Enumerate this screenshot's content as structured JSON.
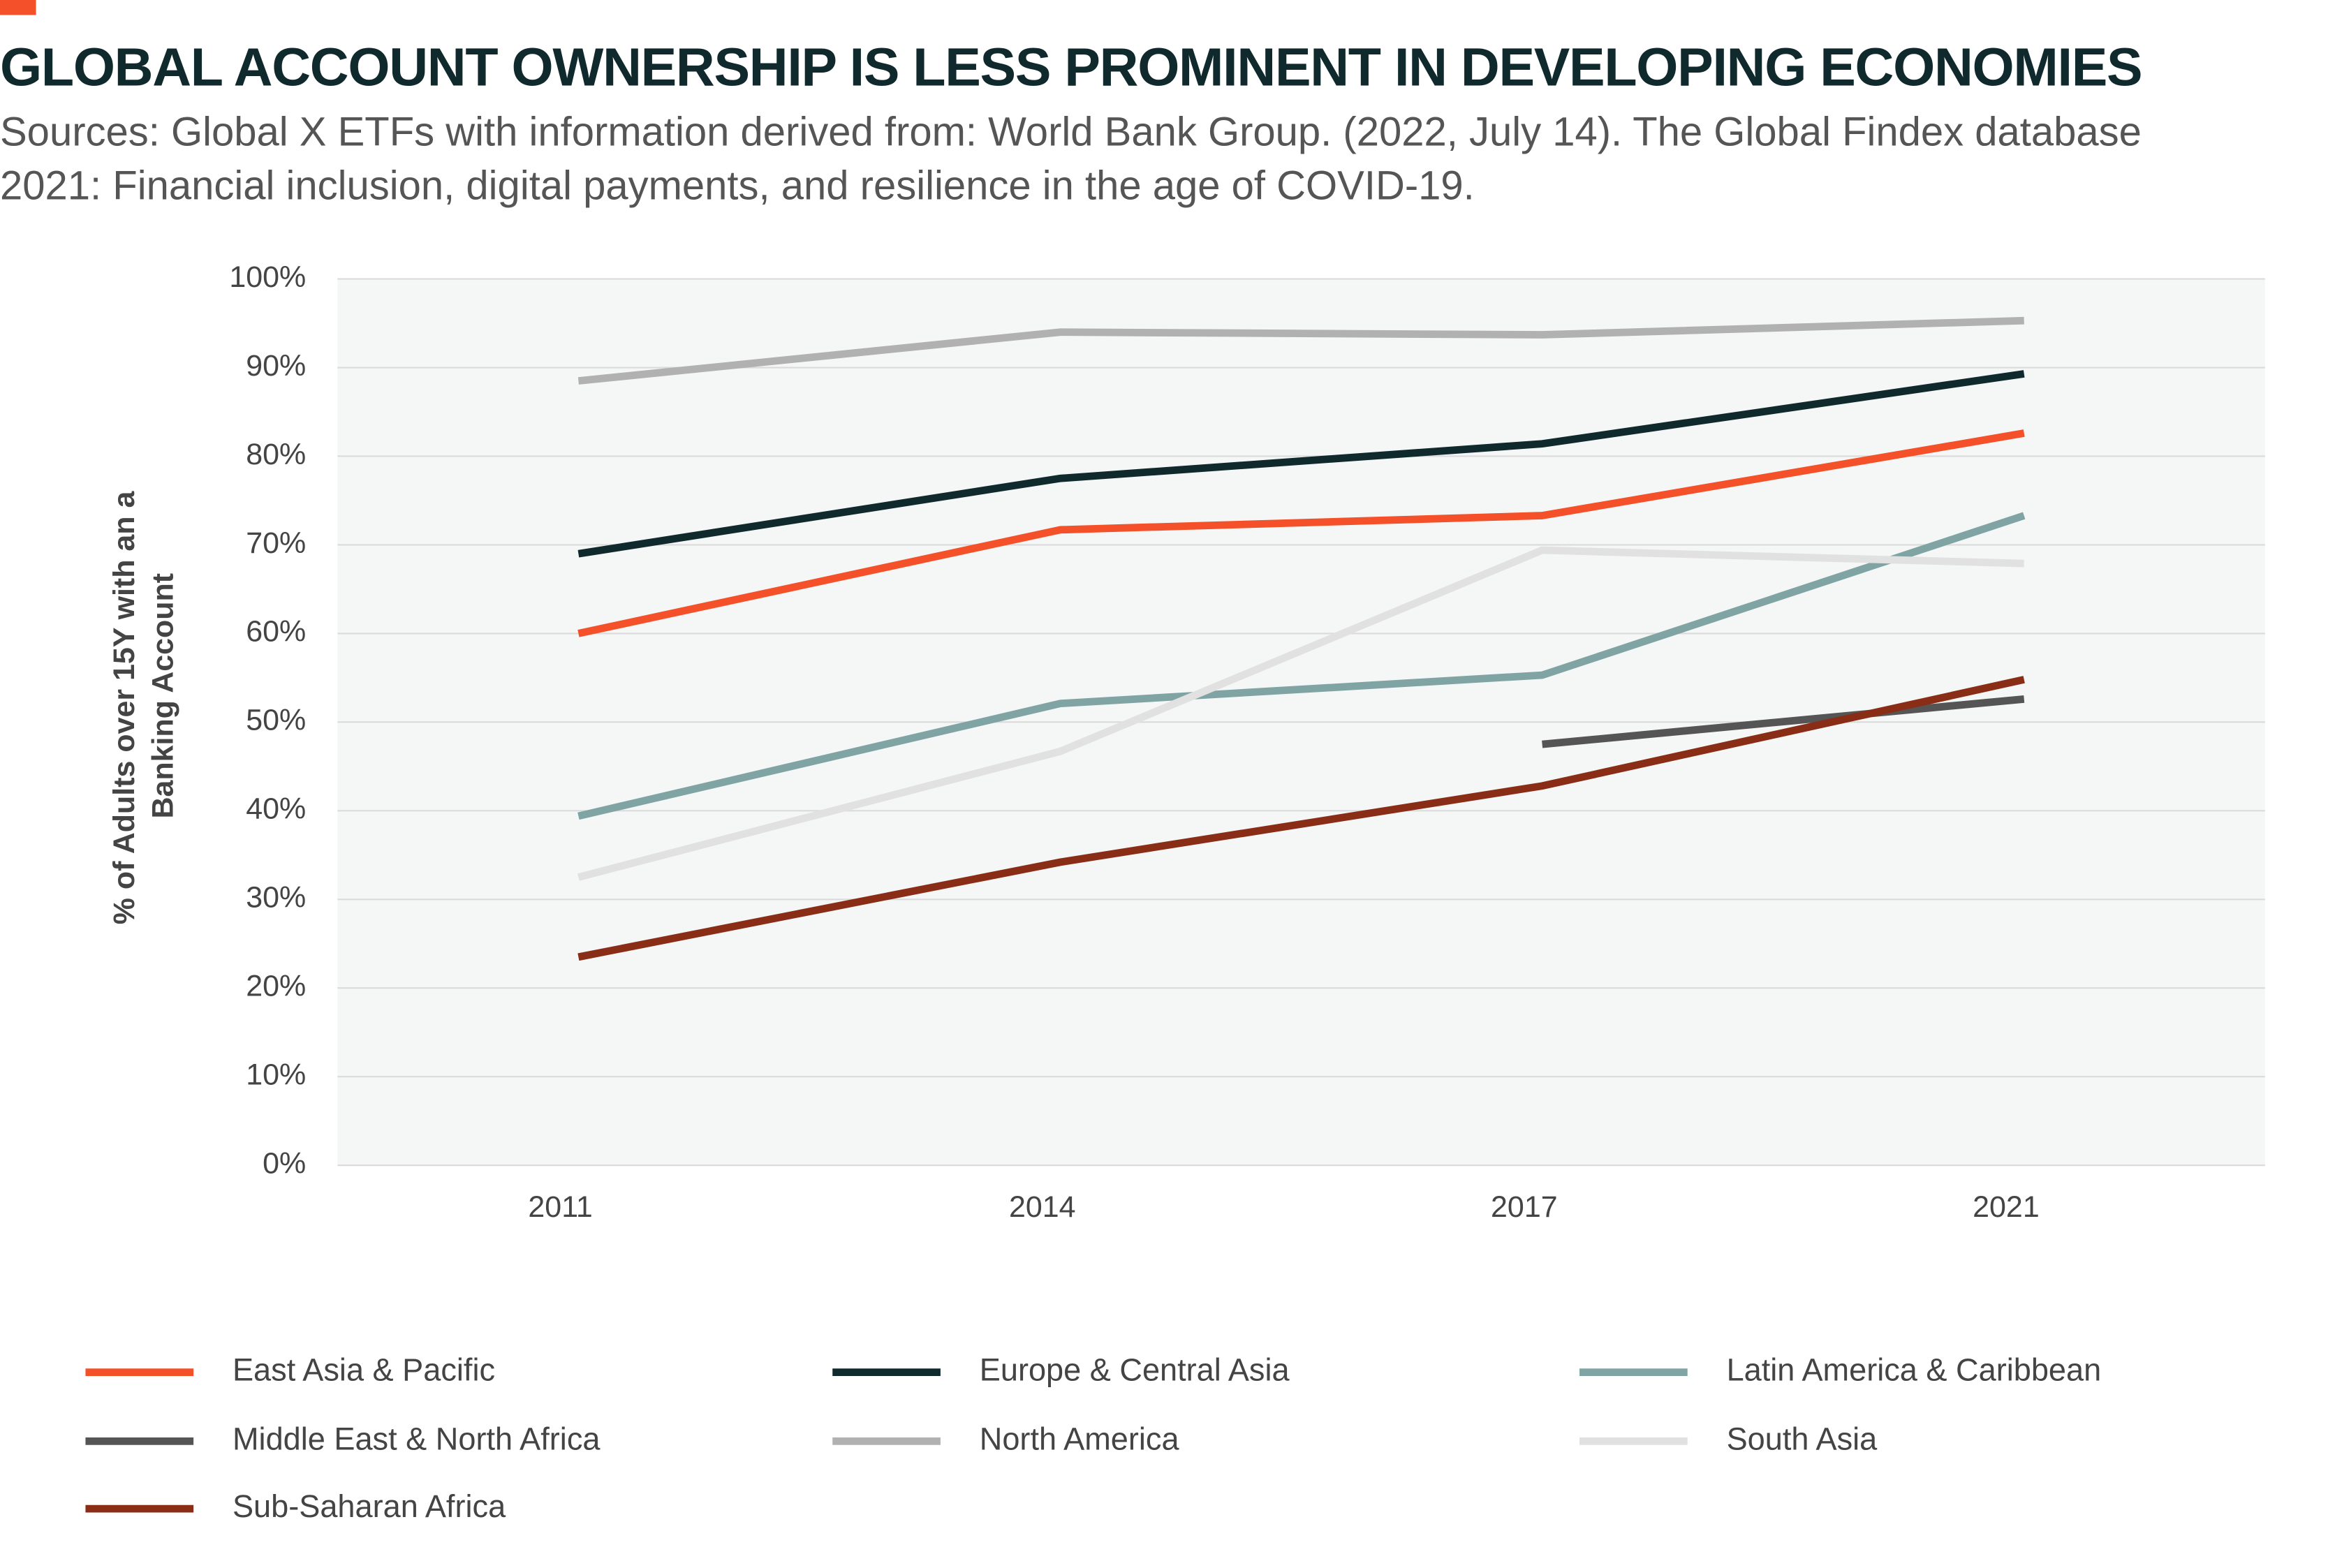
{
  "chart_data": {
    "type": "line",
    "title": "GLOBAL ACCOUNT OWNERSHIP IS LESS PROMINENT IN DEVELOPING ECONOMIES",
    "subtitle": "Sources: Global X ETFs with information derived from: World Bank Group. (2022, July 14). The Global Findex database 2021: Financial inclusion, digital payments, and resilience in the age of COVID-19.",
    "y_label": [
      "% of Adults over 15Y with an a",
      "Banking Account"
    ],
    "categories": [
      "2011",
      "2014",
      "2017",
      "2021"
    ],
    "ylim": [
      0,
      100
    ],
    "yticks": [
      {
        "value": 0,
        "label": "0%"
      },
      {
        "value": 10,
        "label": "10%"
      },
      {
        "value": 20,
        "label": "20%"
      },
      {
        "value": 30,
        "label": "30%"
      },
      {
        "value": 40,
        "label": "40%"
      },
      {
        "value": 50,
        "label": "50%"
      },
      {
        "value": 60,
        "label": "60%"
      },
      {
        "value": 70,
        "label": "70%"
      },
      {
        "value": 80,
        "label": "80%"
      },
      {
        "value": 90,
        "label": "90%"
      },
      {
        "value": 100,
        "label": "100%"
      }
    ],
    "grid": true,
    "series": [
      {
        "name": "East Asia & Pacific",
        "color": "#f4502a",
        "values": [
          60,
          71.7,
          73.3,
          82.6
        ]
      },
      {
        "name": "Europe & Central Asia",
        "color": "#10292d",
        "values": [
          69,
          77.5,
          81.4,
          89.3
        ]
      },
      {
        "name": "Latin America & Caribbean",
        "color": "#80a4a4",
        "values": [
          39.4,
          52.1,
          55.3,
          73.3
        ]
      },
      {
        "name": "Middle East & North Africa",
        "color": "#555555",
        "values": [
          null,
          null,
          47.5,
          52.6
        ]
      },
      {
        "name": "North America",
        "color": "#b1b1b1",
        "values": [
          88.5,
          94,
          93.7,
          95.3
        ]
      },
      {
        "name": "South Asia",
        "color": "#e1e1e1",
        "values": [
          32.5,
          46.7,
          69.4,
          67.9
        ]
      },
      {
        "name": "Sub-Saharan Africa",
        "color": "#8a2d16",
        "values": [
          23.5,
          34.2,
          42.8,
          54.8
        ]
      }
    ]
  }
}
